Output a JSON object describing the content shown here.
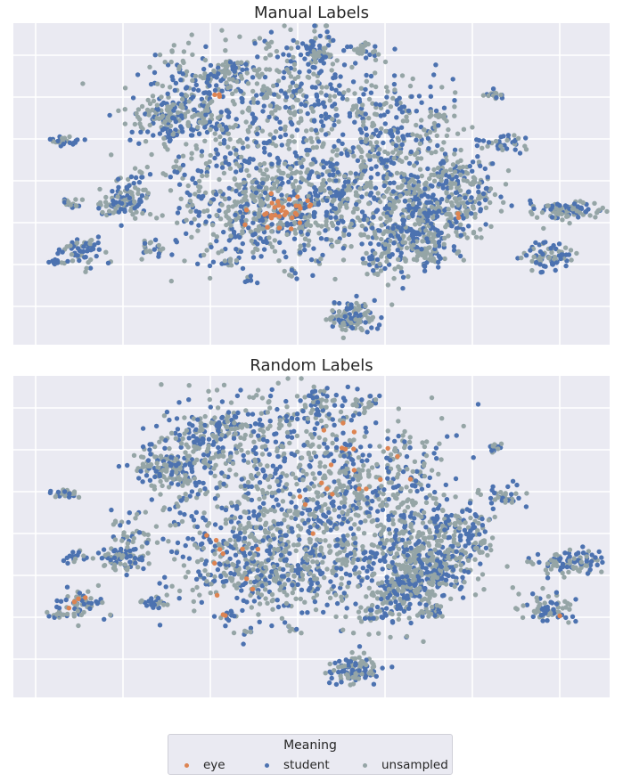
{
  "chart_data": [
    {
      "type": "scatter",
      "title": "Manual Labels",
      "grid": true,
      "series": [
        {
          "name": "unsampled",
          "color": "#95a5a6"
        },
        {
          "name": "student",
          "color": "#4c72b0"
        },
        {
          "name": "eye",
          "color": "#dd8452"
        }
      ]
    },
    {
      "type": "scatter",
      "title": "Random Labels",
      "grid": true,
      "series": [
        {
          "name": "unsampled",
          "color": "#95a5a6"
        },
        {
          "name": "student",
          "color": "#4c72b0"
        },
        {
          "name": "eye",
          "color": "#dd8452"
        }
      ]
    }
  ],
  "legend": {
    "title": "Meaning",
    "placement": "bottom-center",
    "items": [
      {
        "label": "eye",
        "color": "#dd8452"
      },
      {
        "label": "student",
        "color": "#4c72b0"
      },
      {
        "label": "unsampled",
        "color": "#95a5a6"
      }
    ]
  }
}
